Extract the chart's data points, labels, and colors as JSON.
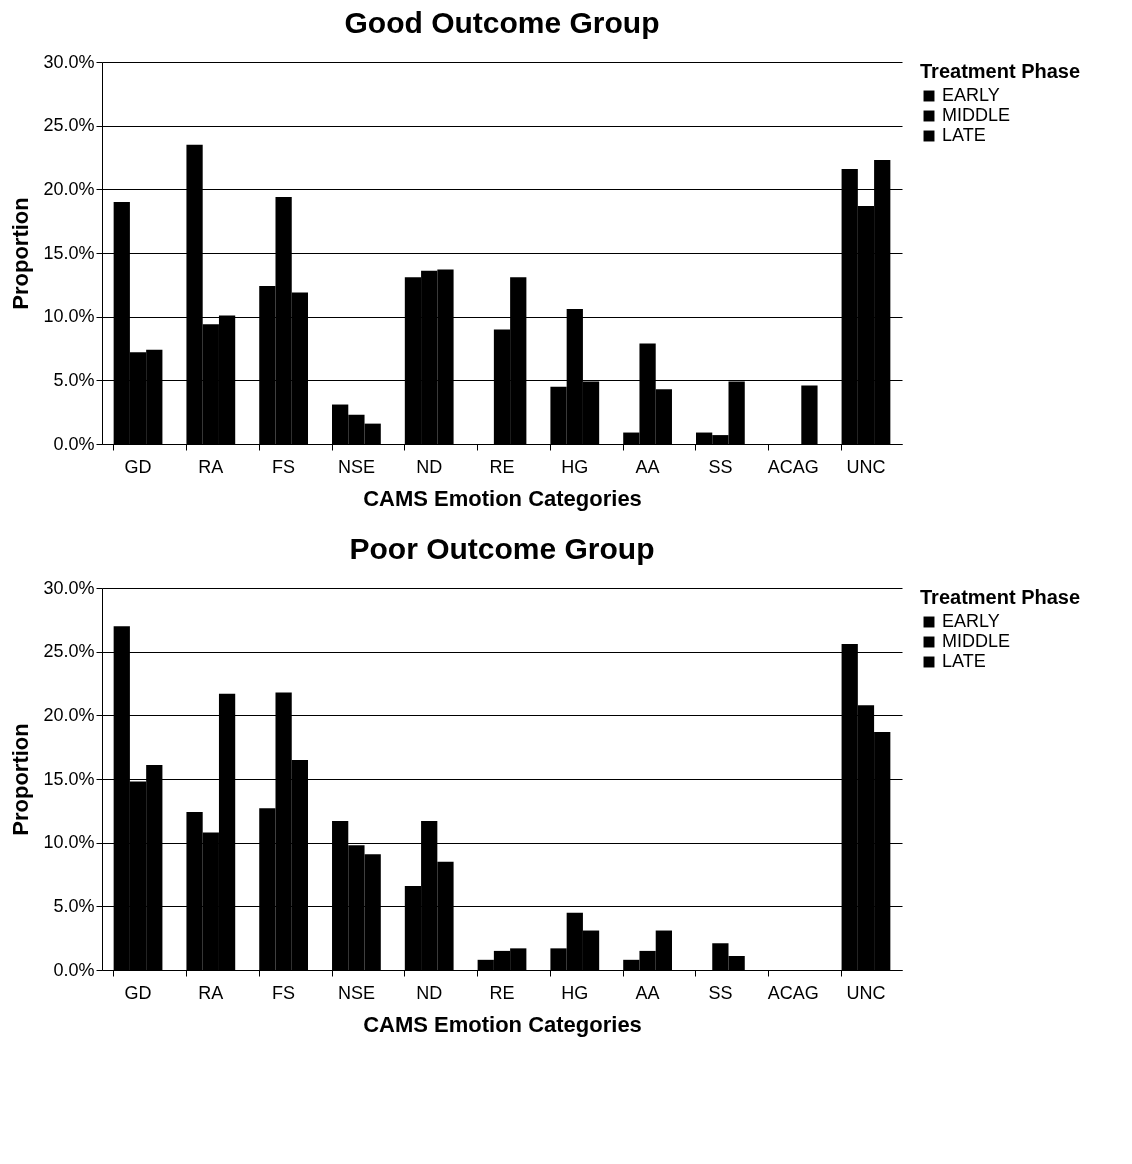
{
  "chart_data": [
    {
      "type": "bar",
      "title": "Good Outcome Group",
      "xlabel": "CAMS Emotion Categories",
      "ylabel": "Proportion",
      "legend_title": "Treatment Phase",
      "categories": [
        "GD",
        "RA",
        "FS",
        "NSE",
        "ND",
        "RE",
        "HG",
        "AA",
        "SS",
        "ACAG",
        "UNC"
      ],
      "series": [
        {
          "name": "EARLY",
          "color": "#000000",
          "values": [
            19.0,
            23.5,
            12.4,
            3.1,
            13.1,
            0,
            4.5,
            0.9,
            0.9,
            0,
            21.6
          ]
        },
        {
          "name": "MIDDLE",
          "color": "#000000",
          "values": [
            7.2,
            9.4,
            19.4,
            2.3,
            13.6,
            9.0,
            10.6,
            7.9,
            0.7,
            0,
            18.7
          ]
        },
        {
          "name": "LATE",
          "color": "#000000",
          "values": [
            7.4,
            10.1,
            11.9,
            1.6,
            13.7,
            13.1,
            4.9,
            4.3,
            4.9,
            4.6,
            22.3
          ]
        }
      ],
      "ylim": [
        0,
        30
      ],
      "yticks": [
        {
          "value": 0,
          "label": "0.0%"
        },
        {
          "value": 5,
          "label": "5.0%"
        },
        {
          "value": 10,
          "label": "10.0%"
        },
        {
          "value": 15,
          "label": "15.0%"
        },
        {
          "value": 20,
          "label": "20.0%"
        },
        {
          "value": 25,
          "label": "25.0%"
        },
        {
          "value": 30,
          "label": "30.0%"
        }
      ],
      "grid": "y",
      "legend": "right"
    },
    {
      "type": "bar",
      "title": "Poor Outcome Group",
      "xlabel": "CAMS Emotion Categories",
      "ylabel": "Proportion",
      "legend_title": "Treatment Phase",
      "categories": [
        "GD",
        "RA",
        "FS",
        "NSE",
        "ND",
        "RE",
        "HG",
        "AA",
        "SS",
        "ACAG",
        "UNC"
      ],
      "series": [
        {
          "name": "EARLY",
          "color": "#000000",
          "values": [
            27.0,
            12.4,
            12.7,
            11.7,
            6.6,
            0.8,
            1.7,
            0.8,
            0,
            0,
            25.6
          ]
        },
        {
          "name": "MIDDLE",
          "color": "#000000",
          "values": [
            14.8,
            10.8,
            21.8,
            9.8,
            11.7,
            1.5,
            4.5,
            1.5,
            2.1,
            0,
            20.8
          ]
        },
        {
          "name": "LATE",
          "color": "#000000",
          "values": [
            16.1,
            21.7,
            16.5,
            9.1,
            8.5,
            1.7,
            3.1,
            3.1,
            1.1,
            0,
            18.7
          ]
        }
      ],
      "ylim": [
        0,
        30
      ],
      "yticks": [
        {
          "value": 0,
          "label": "0.0%"
        },
        {
          "value": 5,
          "label": "5.0%"
        },
        {
          "value": 10,
          "label": "10.0%"
        },
        {
          "value": 15,
          "label": "15.0%"
        },
        {
          "value": 20,
          "label": "20.0%"
        },
        {
          "value": 25,
          "label": "25.0%"
        },
        {
          "value": 30,
          "label": "30.0%"
        }
      ],
      "grid": "y",
      "legend": "right"
    }
  ]
}
